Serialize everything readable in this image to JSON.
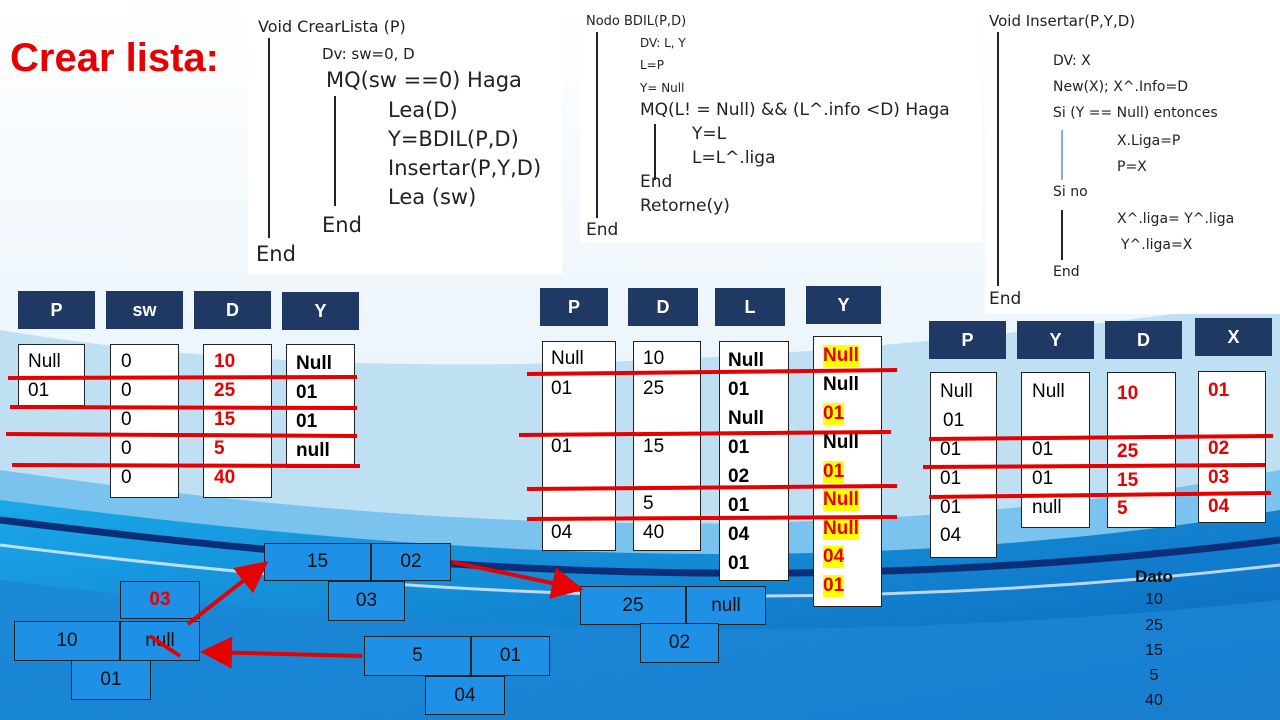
{
  "title": "Crear lista:",
  "code1": {
    "line1": "Void CrearLista (P)",
    "line2": "Dv: sw=0, D",
    "line3": "MQ(sw ==0) Haga",
    "line4": "Lea(D)",
    "line5": "Y=BDIL(P,D)",
    "line6": "Insertar(P,Y,D)",
    "line7": "Lea (sw)",
    "line8": "End",
    "line9": "End"
  },
  "code2": {
    "line1": "Nodo BDIL(P,D)",
    "line2": "DV:  L,  Y",
    "line3": "L=P",
    "line4": "Y= Null",
    "line5": "MQ(L! = Null) && (L^.info <D) Haga",
    "line6": "Y=L",
    "line7": "L=L^.liga",
    "line8": "End",
    "line9": "Retorne(y)",
    "line10": "End"
  },
  "code3": {
    "line1": "Void Insertar(P,Y,D)",
    "line2": "DV:  X",
    "line3": "New(X);  X^.Info=D",
    "line4": "Si (Y == Null) entonces",
    "line5": "X.Liga=P",
    "line6": "P=X",
    "line7": "Si no",
    "line8": "X^.liga= Y^.liga",
    "line9": "Y^.liga=X",
    "line10": "End",
    "line11": "End"
  },
  "table1": {
    "headers": [
      "P",
      "sw",
      "D",
      "Y"
    ],
    "p": [
      "Null",
      "01"
    ],
    "sw": [
      "0",
      "0",
      "0",
      "0",
      "0"
    ],
    "d": [
      "10",
      "25",
      "15",
      "5",
      "40"
    ],
    "y": [
      "Null",
      "01",
      "01",
      "null"
    ]
  },
  "table2": {
    "headers": [
      "P",
      "D",
      "L",
      "Y"
    ],
    "p": [
      "Null",
      "01",
      "01",
      "04"
    ],
    "d": [
      "10",
      "25",
      "15",
      "5",
      "40"
    ],
    "l": [
      "Null",
      "01",
      "Null",
      "01",
      "02",
      "01",
      "04",
      "01"
    ],
    "y": [
      "Null",
      "Null",
      "01",
      "Null",
      "01",
      "Null",
      "Null",
      "04",
      "01"
    ]
  },
  "table3": {
    "headers": [
      "P",
      "Y",
      "D",
      "X"
    ],
    "p": [
      "Null",
      "01",
      "01",
      "01",
      "01",
      "04"
    ],
    "y": [
      "Null",
      "01",
      "01",
      "null"
    ],
    "d": [
      "10",
      "25",
      "15",
      "5"
    ],
    "x": [
      "01",
      "02",
      "03",
      "04"
    ]
  },
  "nodes": {
    "n1": {
      "info": "10",
      "liga": "null",
      "addr": "01",
      "old_ptr": "03"
    },
    "n2": {
      "info": "15",
      "liga": "02",
      "addr": "03"
    },
    "n3": {
      "info": "25",
      "liga": "null",
      "addr": "02"
    },
    "n4": {
      "info": "5",
      "liga": "01",
      "addr": "04"
    }
  },
  "dato": {
    "label": "Dato",
    "values": [
      "10",
      "25",
      "15",
      "5",
      "40"
    ]
  },
  "colors": {
    "header": "#1f3864",
    "strike": "#e60000",
    "node": "#1e90e6",
    "highlight": "#ffff00"
  }
}
